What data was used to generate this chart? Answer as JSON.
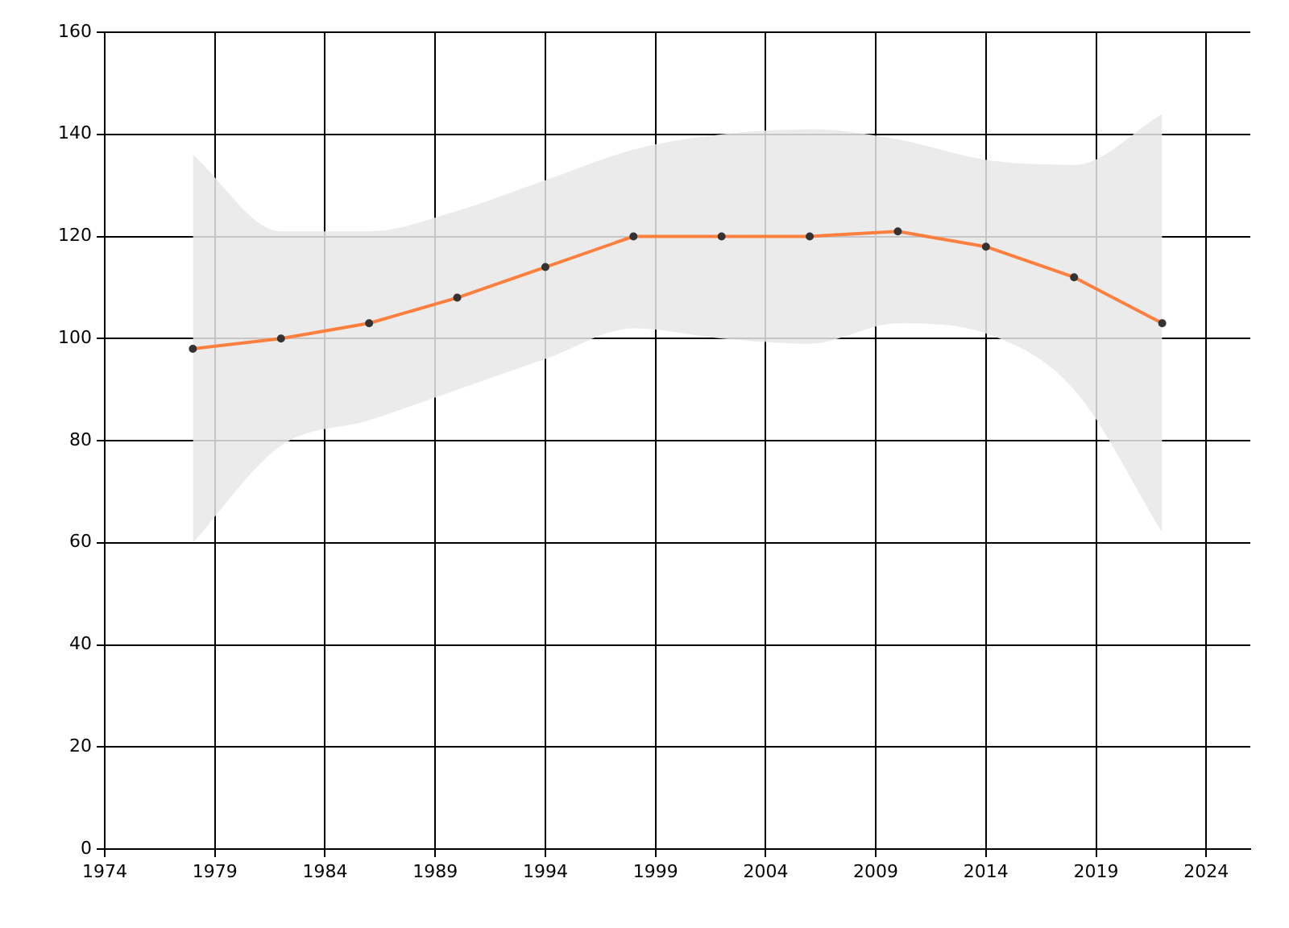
{
  "chart_data": {
    "type": "line",
    "x": [
      1978,
      1982,
      1986,
      1990,
      1994,
      1998,
      2002,
      2006,
      2010,
      2014,
      2018,
      2022
    ],
    "series": [
      {
        "color": "#ff7f3f",
        "values": [
          98,
          100,
          103,
          108,
          114,
          120,
          120,
          120,
          121,
          118,
          112,
          103
        ],
        "lower": [
          60,
          79,
          84,
          90,
          96,
          102,
          100,
          99,
          103,
          101,
          90,
          62
        ],
        "upper": [
          136,
          121,
          121,
          125,
          131,
          137,
          140,
          141,
          139,
          135,
          134,
          144
        ]
      }
    ],
    "xlim": [
      1974,
      2026
    ],
    "xticks": [
      1974,
      1979,
      1984,
      1989,
      1994,
      1999,
      2004,
      2009,
      2014,
      2019,
      2024
    ],
    "ylim": [
      0,
      160
    ],
    "yticks": [
      0,
      20,
      40,
      60,
      80,
      100,
      120,
      140,
      160
    ],
    "grid": true,
    "legend": false,
    "marker": "circle",
    "line_style": "solid"
  }
}
